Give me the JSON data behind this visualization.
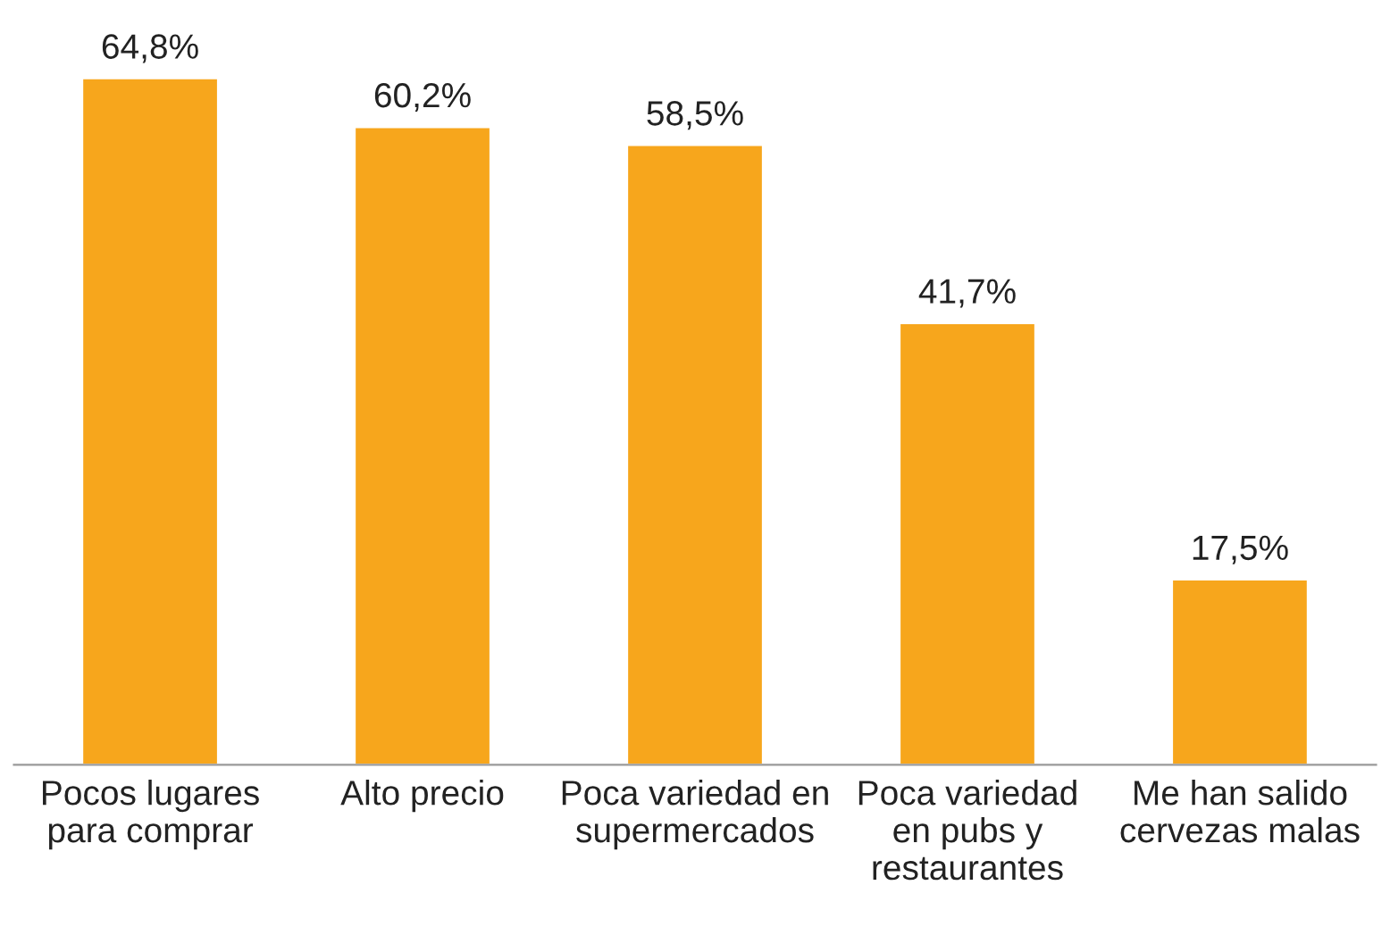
{
  "chart_data": {
    "type": "bar",
    "categories": [
      "Pocos lugares\npara comprar",
      "Alto precio",
      "Poca variedad en\nsupermercados",
      "Poca variedad\nen pubs y\nrestaurantes",
      "Me han salido\ncervezas malas"
    ],
    "values": [
      64.8,
      60.2,
      58.5,
      41.7,
      17.5
    ],
    "value_labels": [
      "64,8%",
      "60,2%",
      "58,5%",
      "41,7%",
      "17,5%"
    ],
    "color": "#f7a61c"
  }
}
